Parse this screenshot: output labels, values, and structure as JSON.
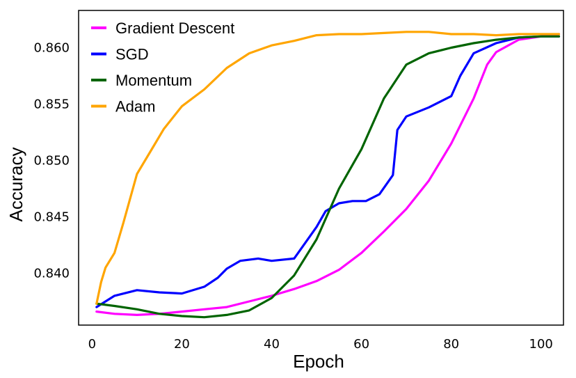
{
  "chart_data": {
    "type": "line",
    "title": "",
    "xlabel": "Epoch",
    "ylabel": "Accuracy",
    "xlim": [
      -3,
      105
    ],
    "ylim": [
      0.8354,
      0.8633
    ],
    "xticks": [
      0,
      20,
      40,
      60,
      80,
      100
    ],
    "yticks": [
      0.84,
      0.845,
      0.85,
      0.855,
      0.86
    ],
    "ytick_labels": [
      "0.840",
      "0.845",
      "0.850",
      "0.855",
      "0.860"
    ],
    "grid": false,
    "legend_position": "top-left",
    "series": [
      {
        "name": "Gradient Descent",
        "color": "#ff00ff",
        "x": [
          1,
          5,
          10,
          15,
          20,
          25,
          30,
          35,
          40,
          45,
          50,
          55,
          60,
          65,
          70,
          75,
          80,
          85,
          88,
          90,
          95,
          100,
          104
        ],
        "y": [
          0.8366,
          0.8364,
          0.8363,
          0.8364,
          0.8366,
          0.8368,
          0.837,
          0.8375,
          0.838,
          0.8386,
          0.8393,
          0.8403,
          0.8418,
          0.8437,
          0.8457,
          0.8482,
          0.8515,
          0.8555,
          0.8585,
          0.8596,
          0.8607,
          0.861,
          0.8612
        ]
      },
      {
        "name": "SGD",
        "color": "#0000ff",
        "x": [
          1,
          5,
          10,
          15,
          20,
          25,
          28,
          30,
          33,
          37,
          40,
          45,
          50,
          52,
          55,
          58,
          61,
          64,
          67,
          68,
          70,
          75,
          80,
          82,
          85,
          90,
          95,
          100,
          104
        ],
        "y": [
          0.837,
          0.838,
          0.8385,
          0.8383,
          0.8382,
          0.8388,
          0.8396,
          0.8404,
          0.8411,
          0.8413,
          0.8411,
          0.8413,
          0.8441,
          0.8455,
          0.8462,
          0.8464,
          0.8464,
          0.847,
          0.8487,
          0.8527,
          0.8539,
          0.8547,
          0.8557,
          0.8575,
          0.8595,
          0.8604,
          0.8609,
          0.861,
          0.861
        ]
      },
      {
        "name": "Momentum",
        "color": "#006400",
        "x": [
          1,
          5,
          10,
          15,
          20,
          25,
          30,
          35,
          40,
          45,
          50,
          55,
          60,
          65,
          70,
          75,
          80,
          85,
          90,
          95,
          100,
          104
        ],
        "y": [
          0.8373,
          0.8371,
          0.8368,
          0.8364,
          0.8362,
          0.8361,
          0.8363,
          0.8367,
          0.8378,
          0.8398,
          0.843,
          0.8475,
          0.851,
          0.8555,
          0.8585,
          0.8595,
          0.86,
          0.8604,
          0.8607,
          0.8609,
          0.861,
          0.861
        ]
      },
      {
        "name": "Adam",
        "color": "#ffa500",
        "x": [
          1,
          2,
          3,
          5,
          7,
          10,
          13,
          16,
          20,
          25,
          30,
          35,
          40,
          45,
          50,
          55,
          60,
          65,
          70,
          75,
          80,
          85,
          90,
          95,
          100,
          104
        ],
        "y": [
          0.8373,
          0.8392,
          0.8405,
          0.8418,
          0.8445,
          0.8488,
          0.8508,
          0.8528,
          0.8548,
          0.8563,
          0.8582,
          0.8595,
          0.8602,
          0.8606,
          0.8611,
          0.8612,
          0.8612,
          0.8613,
          0.8614,
          0.8614,
          0.8612,
          0.8612,
          0.8611,
          0.8612,
          0.8612,
          0.8612
        ]
      }
    ]
  }
}
